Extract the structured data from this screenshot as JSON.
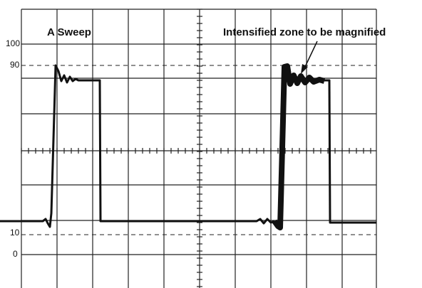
{
  "labels": {
    "sweep": "A Sweep",
    "zone": "Intensified zone to be magnified"
  },
  "scale": [
    "100",
    "90",
    "10",
    "0"
  ]
}
